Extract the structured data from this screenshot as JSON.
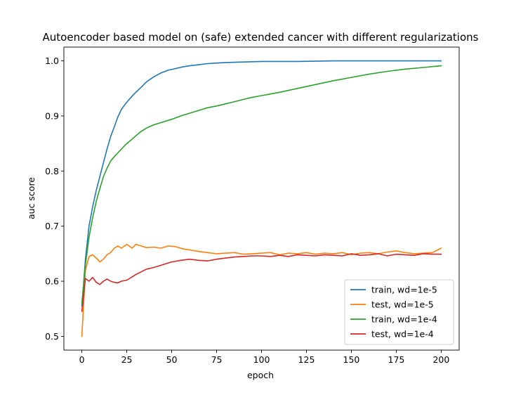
{
  "chart_data": {
    "type": "line",
    "title": "Autoencoder based model on (safe) extended cancer with different regularizations",
    "xlabel": "epoch",
    "ylabel": "auc score",
    "xlim": [
      -10,
      210
    ],
    "ylim": [
      0.475,
      1.025
    ],
    "xticks": [
      0,
      25,
      50,
      75,
      100,
      125,
      150,
      175,
      200
    ],
    "yticks": [
      0.5,
      0.6,
      0.7,
      0.8,
      0.9,
      1.0
    ],
    "xtick_labels": [
      "0",
      "25",
      "50",
      "75",
      "100",
      "125",
      "150",
      "175",
      "200"
    ],
    "ytick_labels": [
      "0.5",
      "0.6",
      "0.7",
      "0.8",
      "0.9",
      "1.0"
    ],
    "grid": false,
    "legend_position": "lower-right",
    "series": [
      {
        "name": "train, wd=1e-5",
        "color": "#1f77b4",
        "x": [
          0,
          2,
          4,
          6,
          8,
          10,
          12,
          14,
          16,
          18,
          20,
          22,
          25,
          28,
          30,
          33,
          36,
          40,
          44,
          48,
          52,
          56,
          60,
          65,
          70,
          75,
          80,
          90,
          100,
          110,
          120,
          140,
          160,
          180,
          200
        ],
        "y": [
          0.555,
          0.64,
          0.7,
          0.735,
          0.765,
          0.79,
          0.815,
          0.84,
          0.862,
          0.88,
          0.898,
          0.912,
          0.925,
          0.936,
          0.943,
          0.952,
          0.962,
          0.971,
          0.978,
          0.983,
          0.986,
          0.989,
          0.991,
          0.993,
          0.995,
          0.996,
          0.997,
          0.998,
          0.999,
          0.999,
          0.999,
          1.0,
          1.0,
          1.0,
          1.0
        ]
      },
      {
        "name": "test, wd=1e-5",
        "color": "#ff7f0e",
        "x": [
          0,
          2,
          4,
          6,
          8,
          10,
          12,
          14,
          16,
          18,
          20,
          22,
          25,
          28,
          30,
          33,
          36,
          40,
          44,
          48,
          52,
          56,
          60,
          65,
          70,
          75,
          80,
          85,
          90,
          95,
          100,
          105,
          110,
          115,
          120,
          125,
          130,
          135,
          140,
          145,
          150,
          155,
          160,
          165,
          170,
          175,
          180,
          185,
          190,
          195,
          200
        ],
        "y": [
          0.5,
          0.62,
          0.645,
          0.648,
          0.642,
          0.635,
          0.64,
          0.648,
          0.652,
          0.66,
          0.664,
          0.66,
          0.667,
          0.66,
          0.667,
          0.664,
          0.661,
          0.662,
          0.66,
          0.664,
          0.663,
          0.659,
          0.657,
          0.654,
          0.652,
          0.65,
          0.651,
          0.652,
          0.649,
          0.65,
          0.651,
          0.652,
          0.648,
          0.651,
          0.65,
          0.652,
          0.649,
          0.651,
          0.65,
          0.652,
          0.648,
          0.651,
          0.652,
          0.65,
          0.653,
          0.655,
          0.652,
          0.65,
          0.651,
          0.652,
          0.66
        ]
      },
      {
        "name": "train, wd=1e-4",
        "color": "#2ca02c",
        "x": [
          0,
          2,
          4,
          6,
          8,
          10,
          12,
          14,
          16,
          18,
          20,
          22,
          25,
          28,
          30,
          33,
          36,
          40,
          45,
          50,
          55,
          60,
          65,
          70,
          75,
          80,
          85,
          90,
          95,
          100,
          110,
          120,
          130,
          140,
          150,
          160,
          170,
          180,
          190,
          200
        ],
        "y": [
          0.56,
          0.63,
          0.68,
          0.715,
          0.745,
          0.768,
          0.79,
          0.805,
          0.818,
          0.826,
          0.833,
          0.84,
          0.85,
          0.858,
          0.864,
          0.872,
          0.878,
          0.884,
          0.889,
          0.894,
          0.9,
          0.905,
          0.91,
          0.915,
          0.918,
          0.922,
          0.926,
          0.93,
          0.934,
          0.937,
          0.943,
          0.95,
          0.957,
          0.964,
          0.97,
          0.976,
          0.981,
          0.985,
          0.988,
          0.991
        ]
      },
      {
        "name": "test, wd=1e-4",
        "color": "#d62728",
        "x": [
          0,
          2,
          4,
          6,
          8,
          10,
          12,
          14,
          16,
          18,
          20,
          22,
          25,
          28,
          30,
          33,
          36,
          40,
          45,
          50,
          55,
          60,
          65,
          70,
          75,
          80,
          85,
          90,
          95,
          100,
          105,
          110,
          115,
          120,
          125,
          130,
          135,
          140,
          145,
          150,
          155,
          160,
          165,
          170,
          175,
          180,
          185,
          190,
          195,
          200
        ],
        "y": [
          0.545,
          0.605,
          0.6,
          0.607,
          0.598,
          0.594,
          0.6,
          0.604,
          0.6,
          0.598,
          0.597,
          0.6,
          0.602,
          0.608,
          0.612,
          0.617,
          0.622,
          0.625,
          0.63,
          0.635,
          0.638,
          0.64,
          0.638,
          0.637,
          0.64,
          0.642,
          0.644,
          0.645,
          0.646,
          0.646,
          0.645,
          0.647,
          0.645,
          0.648,
          0.647,
          0.646,
          0.648,
          0.647,
          0.646,
          0.65,
          0.647,
          0.648,
          0.65,
          0.646,
          0.649,
          0.648,
          0.647,
          0.65,
          0.649,
          0.649
        ]
      }
    ]
  }
}
